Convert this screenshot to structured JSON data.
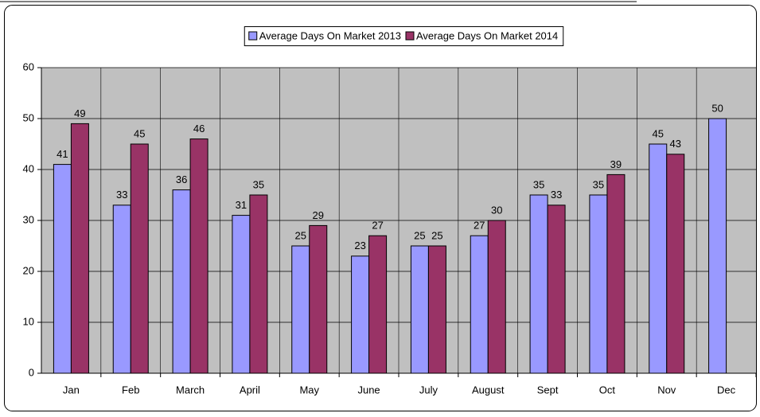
{
  "chart_data": {
    "type": "bar",
    "categories": [
      "Jan",
      "Feb",
      "March",
      "April",
      "May",
      "June",
      "July",
      "August",
      "Sept",
      "Oct",
      "Nov",
      "Dec"
    ],
    "series": [
      {
        "name": "Average Days On Market 2013",
        "color": "#9999ff",
        "values": [
          41,
          33,
          36,
          31,
          25,
          23,
          25,
          27,
          35,
          35,
          45,
          50
        ]
      },
      {
        "name": "Average Days On Market 2014",
        "color": "#993366",
        "values": [
          49,
          45,
          46,
          35,
          29,
          27,
          25,
          30,
          33,
          39,
          43,
          null
        ]
      }
    ],
    "ylim": [
      0,
      60
    ],
    "yticks": [
      0,
      10,
      20,
      30,
      40,
      50,
      60
    ],
    "grid": true,
    "legend": "top"
  }
}
